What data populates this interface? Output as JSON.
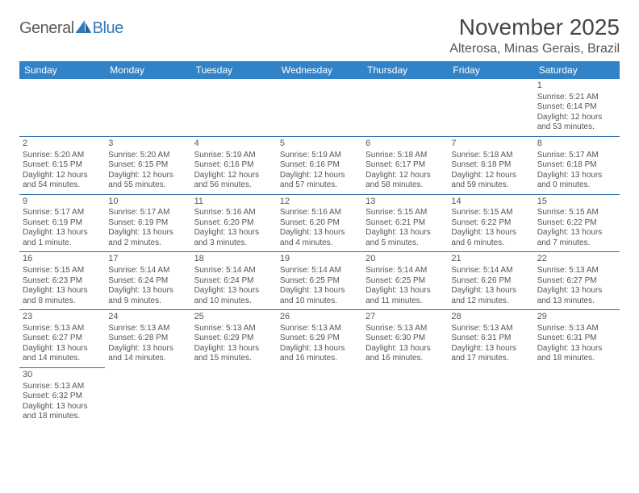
{
  "logo": {
    "part1": "General",
    "part2": "Blue"
  },
  "title": "November 2025",
  "location": "Alterosa, Minas Gerais, Brazil",
  "style": {
    "header_bg": "#3182c6",
    "header_text": "#ffffff",
    "cell_border": "#2f6fa8",
    "body_text": "#555555",
    "logo_gray": "#5b5b5b",
    "logo_blue": "#2f79b8",
    "title_fontsize": 28,
    "location_fontsize": 16,
    "dayheader_fontsize": 12,
    "cell_fontsize": 10
  },
  "weekdays": [
    "Sunday",
    "Monday",
    "Tuesday",
    "Wednesday",
    "Thursday",
    "Friday",
    "Saturday"
  ],
  "weeks": [
    [
      null,
      null,
      null,
      null,
      null,
      null,
      {
        "n": "1",
        "sr": "Sunrise: 5:21 AM",
        "ss": "Sunset: 6:14 PM",
        "dl": "Daylight: 12 hours and 53 minutes."
      }
    ],
    [
      {
        "n": "2",
        "sr": "Sunrise: 5:20 AM",
        "ss": "Sunset: 6:15 PM",
        "dl": "Daylight: 12 hours and 54 minutes."
      },
      {
        "n": "3",
        "sr": "Sunrise: 5:20 AM",
        "ss": "Sunset: 6:15 PM",
        "dl": "Daylight: 12 hours and 55 minutes."
      },
      {
        "n": "4",
        "sr": "Sunrise: 5:19 AM",
        "ss": "Sunset: 6:16 PM",
        "dl": "Daylight: 12 hours and 56 minutes."
      },
      {
        "n": "5",
        "sr": "Sunrise: 5:19 AM",
        "ss": "Sunset: 6:16 PM",
        "dl": "Daylight: 12 hours and 57 minutes."
      },
      {
        "n": "6",
        "sr": "Sunrise: 5:18 AM",
        "ss": "Sunset: 6:17 PM",
        "dl": "Daylight: 12 hours and 58 minutes."
      },
      {
        "n": "7",
        "sr": "Sunrise: 5:18 AM",
        "ss": "Sunset: 6:18 PM",
        "dl": "Daylight: 12 hours and 59 minutes."
      },
      {
        "n": "8",
        "sr": "Sunrise: 5:17 AM",
        "ss": "Sunset: 6:18 PM",
        "dl": "Daylight: 13 hours and 0 minutes."
      }
    ],
    [
      {
        "n": "9",
        "sr": "Sunrise: 5:17 AM",
        "ss": "Sunset: 6:19 PM",
        "dl": "Daylight: 13 hours and 1 minute."
      },
      {
        "n": "10",
        "sr": "Sunrise: 5:17 AM",
        "ss": "Sunset: 6:19 PM",
        "dl": "Daylight: 13 hours and 2 minutes."
      },
      {
        "n": "11",
        "sr": "Sunrise: 5:16 AM",
        "ss": "Sunset: 6:20 PM",
        "dl": "Daylight: 13 hours and 3 minutes."
      },
      {
        "n": "12",
        "sr": "Sunrise: 5:16 AM",
        "ss": "Sunset: 6:20 PM",
        "dl": "Daylight: 13 hours and 4 minutes."
      },
      {
        "n": "13",
        "sr": "Sunrise: 5:15 AM",
        "ss": "Sunset: 6:21 PM",
        "dl": "Daylight: 13 hours and 5 minutes."
      },
      {
        "n": "14",
        "sr": "Sunrise: 5:15 AM",
        "ss": "Sunset: 6:22 PM",
        "dl": "Daylight: 13 hours and 6 minutes."
      },
      {
        "n": "15",
        "sr": "Sunrise: 5:15 AM",
        "ss": "Sunset: 6:22 PM",
        "dl": "Daylight: 13 hours and 7 minutes."
      }
    ],
    [
      {
        "n": "16",
        "sr": "Sunrise: 5:15 AM",
        "ss": "Sunset: 6:23 PM",
        "dl": "Daylight: 13 hours and 8 minutes."
      },
      {
        "n": "17",
        "sr": "Sunrise: 5:14 AM",
        "ss": "Sunset: 6:24 PM",
        "dl": "Daylight: 13 hours and 9 minutes."
      },
      {
        "n": "18",
        "sr": "Sunrise: 5:14 AM",
        "ss": "Sunset: 6:24 PM",
        "dl": "Daylight: 13 hours and 10 minutes."
      },
      {
        "n": "19",
        "sr": "Sunrise: 5:14 AM",
        "ss": "Sunset: 6:25 PM",
        "dl": "Daylight: 13 hours and 10 minutes."
      },
      {
        "n": "20",
        "sr": "Sunrise: 5:14 AM",
        "ss": "Sunset: 6:25 PM",
        "dl": "Daylight: 13 hours and 11 minutes."
      },
      {
        "n": "21",
        "sr": "Sunrise: 5:14 AM",
        "ss": "Sunset: 6:26 PM",
        "dl": "Daylight: 13 hours and 12 minutes."
      },
      {
        "n": "22",
        "sr": "Sunrise: 5:13 AM",
        "ss": "Sunset: 6:27 PM",
        "dl": "Daylight: 13 hours and 13 minutes."
      }
    ],
    [
      {
        "n": "23",
        "sr": "Sunrise: 5:13 AM",
        "ss": "Sunset: 6:27 PM",
        "dl": "Daylight: 13 hours and 14 minutes."
      },
      {
        "n": "24",
        "sr": "Sunrise: 5:13 AM",
        "ss": "Sunset: 6:28 PM",
        "dl": "Daylight: 13 hours and 14 minutes."
      },
      {
        "n": "25",
        "sr": "Sunrise: 5:13 AM",
        "ss": "Sunset: 6:29 PM",
        "dl": "Daylight: 13 hours and 15 minutes."
      },
      {
        "n": "26",
        "sr": "Sunrise: 5:13 AM",
        "ss": "Sunset: 6:29 PM",
        "dl": "Daylight: 13 hours and 16 minutes."
      },
      {
        "n": "27",
        "sr": "Sunrise: 5:13 AM",
        "ss": "Sunset: 6:30 PM",
        "dl": "Daylight: 13 hours and 16 minutes."
      },
      {
        "n": "28",
        "sr": "Sunrise: 5:13 AM",
        "ss": "Sunset: 6:31 PM",
        "dl": "Daylight: 13 hours and 17 minutes."
      },
      {
        "n": "29",
        "sr": "Sunrise: 5:13 AM",
        "ss": "Sunset: 6:31 PM",
        "dl": "Daylight: 13 hours and 18 minutes."
      }
    ],
    [
      {
        "n": "30",
        "sr": "Sunrise: 5:13 AM",
        "ss": "Sunset: 6:32 PM",
        "dl": "Daylight: 13 hours and 18 minutes."
      },
      null,
      null,
      null,
      null,
      null,
      null
    ]
  ]
}
